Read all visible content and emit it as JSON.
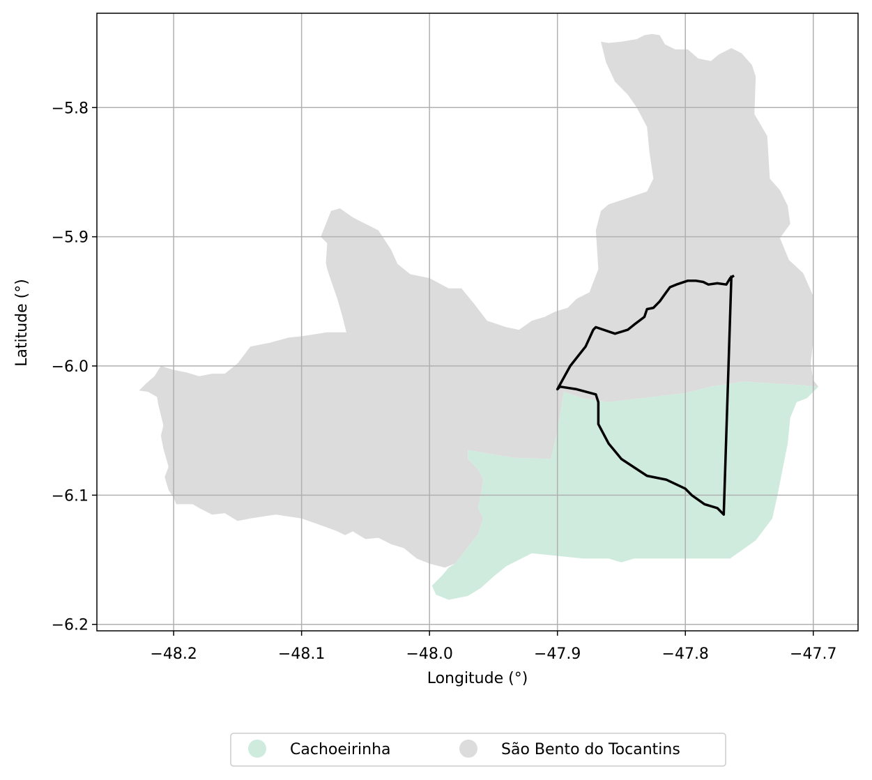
{
  "chart_data": {
    "type": "map",
    "title": "",
    "xlabel": "Longitude (°)",
    "ylabel": "Latitude (°)",
    "xlim": [
      -48.26,
      -47.665
    ],
    "ylim": [
      -6.205,
      -5.727
    ],
    "grid": true,
    "x_ticks": [
      {
        "value": -48.2,
        "label": "−48.2"
      },
      {
        "value": -48.1,
        "label": "−48.1"
      },
      {
        "value": -48.0,
        "label": "−48.0"
      },
      {
        "value": -47.9,
        "label": "−47.9"
      },
      {
        "value": -47.8,
        "label": "−47.8"
      },
      {
        "value": -47.7,
        "label": "−47.7"
      }
    ],
    "y_ticks": [
      {
        "value": -5.8,
        "label": "−5.8"
      },
      {
        "value": -5.9,
        "label": "−5.9"
      },
      {
        "value": -6.0,
        "label": "−6.0"
      },
      {
        "value": -6.1,
        "label": "−6.1"
      },
      {
        "value": -6.2,
        "label": "−6.2"
      }
    ],
    "legend": {
      "placement": "bottom-center",
      "entries": [
        {
          "name": "Cachoeirinha",
          "color": "#cfebde"
        },
        {
          "name": "São Bento do Tocantins",
          "color": "#dcdcdc"
        }
      ]
    },
    "regions": [
      {
        "name": "São Bento do Tocantins",
        "color": "#dcdcdc",
        "polygon": [
          [
            -47.866,
            -5.749
          ],
          [
            -47.86,
            -5.75
          ],
          [
            -47.85,
            -5.749
          ],
          [
            -47.838,
            -5.747
          ],
          [
            -47.832,
            -5.744
          ],
          [
            -47.826,
            -5.743
          ],
          [
            -47.82,
            -5.744
          ],
          [
            -47.816,
            -5.751
          ],
          [
            -47.808,
            -5.755
          ],
          [
            -47.798,
            -5.755
          ],
          [
            -47.79,
            -5.762
          ],
          [
            -47.78,
            -5.764
          ],
          [
            -47.774,
            -5.759
          ],
          [
            -47.764,
            -5.754
          ],
          [
            -47.756,
            -5.758
          ],
          [
            -47.748,
            -5.767
          ],
          [
            -47.745,
            -5.776
          ],
          [
            -47.746,
            -5.805
          ],
          [
            -47.736,
            -5.822
          ],
          [
            -47.734,
            -5.855
          ],
          [
            -47.726,
            -5.864
          ],
          [
            -47.72,
            -5.876
          ],
          [
            -47.718,
            -5.89
          ],
          [
            -47.726,
            -5.901
          ],
          [
            -47.719,
            -5.918
          ],
          [
            -47.708,
            -5.928
          ],
          [
            -47.7,
            -5.946
          ],
          [
            -47.7,
            -5.98
          ],
          [
            -47.702,
            -5.998
          ],
          [
            -47.7,
            -6.011
          ],
          [
            -47.696,
            -6.016
          ],
          [
            -47.707,
            -6.015
          ],
          [
            -47.74,
            -6.013
          ],
          [
            -47.755,
            -6.012
          ],
          [
            -47.78,
            -6.016
          ],
          [
            -47.8,
            -6.021
          ],
          [
            -47.86,
            -6.028
          ],
          [
            -47.88,
            -6.025
          ],
          [
            -47.895,
            -6.02
          ],
          [
            -47.9,
            -6.05
          ],
          [
            -47.905,
            -6.072
          ],
          [
            -47.935,
            -6.071
          ],
          [
            -47.97,
            -6.065
          ],
          [
            -47.97,
            -6.072
          ],
          [
            -47.962,
            -6.08
          ],
          [
            -47.958,
            -6.088
          ],
          [
            -47.96,
            -6.1
          ],
          [
            -47.962,
            -6.11
          ],
          [
            -47.958,
            -6.118
          ],
          [
            -47.962,
            -6.13
          ],
          [
            -47.98,
            -6.153
          ],
          [
            -47.988,
            -6.156
          ],
          [
            -48.0,
            -6.153
          ],
          [
            -48.01,
            -6.149
          ],
          [
            -48.02,
            -6.141
          ],
          [
            -48.03,
            -6.138
          ],
          [
            -48.04,
            -6.133
          ],
          [
            -48.05,
            -6.134
          ],
          [
            -48.06,
            -6.128
          ],
          [
            -48.066,
            -6.131
          ],
          [
            -48.072,
            -6.128
          ],
          [
            -48.08,
            -6.125
          ],
          [
            -48.1,
            -6.118
          ],
          [
            -48.12,
            -6.115
          ],
          [
            -48.14,
            -6.118
          ],
          [
            -48.15,
            -6.12
          ],
          [
            -48.16,
            -6.114
          ],
          [
            -48.17,
            -6.115
          ],
          [
            -48.18,
            -6.11
          ],
          [
            -48.185,
            -6.107
          ],
          [
            -48.198,
            -6.107
          ],
          [
            -48.2,
            -6.102
          ],
          [
            -48.204,
            -6.096
          ],
          [
            -48.207,
            -6.086
          ],
          [
            -48.204,
            -6.078
          ],
          [
            -48.208,
            -6.064
          ],
          [
            -48.21,
            -6.054
          ],
          [
            -48.208,
            -6.046
          ],
          [
            -48.212,
            -6.03
          ],
          [
            -48.213,
            -6.024
          ],
          [
            -48.22,
            -6.02
          ],
          [
            -48.227,
            -6.019
          ],
          [
            -48.222,
            -6.014
          ],
          [
            -48.215,
            -6.008
          ],
          [
            -48.21,
            -6.0
          ],
          [
            -48.2,
            -6.003
          ],
          [
            -48.19,
            -6.005
          ],
          [
            -48.18,
            -6.008
          ],
          [
            -48.17,
            -6.006
          ],
          [
            -48.16,
            -6.006
          ],
          [
            -48.15,
            -5.998
          ],
          [
            -48.14,
            -5.985
          ],
          [
            -48.125,
            -5.982
          ],
          [
            -48.11,
            -5.978
          ],
          [
            -48.1,
            -5.977
          ],
          [
            -48.08,
            -5.974
          ],
          [
            -48.065,
            -5.974
          ],
          [
            -48.068,
            -5.962
          ],
          [
            -48.072,
            -5.948
          ],
          [
            -48.077,
            -5.934
          ],
          [
            -48.08,
            -5.925
          ],
          [
            -48.081,
            -5.92
          ],
          [
            -48.08,
            -5.905
          ],
          [
            -48.085,
            -5.9
          ],
          [
            -48.077,
            -5.88
          ],
          [
            -48.07,
            -5.878
          ],
          [
            -48.06,
            -5.885
          ],
          [
            -48.05,
            -5.89
          ],
          [
            -48.04,
            -5.895
          ],
          [
            -48.03,
            -5.91
          ],
          [
            -48.025,
            -5.921
          ],
          [
            -48.015,
            -5.929
          ],
          [
            -48.0,
            -5.932
          ],
          [
            -47.985,
            -5.94
          ],
          [
            -47.975,
            -5.94
          ],
          [
            -47.965,
            -5.952
          ],
          [
            -47.955,
            -5.965
          ],
          [
            -47.94,
            -5.97
          ],
          [
            -47.93,
            -5.972
          ],
          [
            -47.92,
            -5.965
          ],
          [
            -47.91,
            -5.962
          ],
          [
            -47.902,
            -5.958
          ],
          [
            -47.892,
            -5.955
          ],
          [
            -47.885,
            -5.948
          ],
          [
            -47.875,
            -5.943
          ],
          [
            -47.868,
            -5.925
          ],
          [
            -47.87,
            -5.895
          ],
          [
            -47.866,
            -5.88
          ],
          [
            -47.86,
            -5.875
          ],
          [
            -47.845,
            -5.87
          ],
          [
            -47.83,
            -5.865
          ],
          [
            -47.825,
            -5.855
          ],
          [
            -47.828,
            -5.835
          ],
          [
            -47.83,
            -5.815
          ],
          [
            -47.838,
            -5.8
          ],
          [
            -47.845,
            -5.79
          ],
          [
            -47.855,
            -5.78
          ],
          [
            -47.862,
            -5.765
          ]
        ]
      },
      {
        "name": "Cachoeirinha",
        "color": "#cfebde",
        "polygon": [
          [
            -47.895,
            -6.02
          ],
          [
            -47.88,
            -6.025
          ],
          [
            -47.86,
            -6.028
          ],
          [
            -47.8,
            -6.021
          ],
          [
            -47.78,
            -6.016
          ],
          [
            -47.755,
            -6.012
          ],
          [
            -47.74,
            -6.013
          ],
          [
            -47.707,
            -6.015
          ],
          [
            -47.696,
            -6.016
          ],
          [
            -47.705,
            -6.025
          ],
          [
            -47.713,
            -6.028
          ],
          [
            -47.718,
            -6.04
          ],
          [
            -47.72,
            -6.06
          ],
          [
            -47.724,
            -6.08
          ],
          [
            -47.728,
            -6.1
          ],
          [
            -47.732,
            -6.118
          ],
          [
            -47.745,
            -6.135
          ],
          [
            -47.765,
            -6.149
          ],
          [
            -47.8,
            -6.149
          ],
          [
            -47.84,
            -6.149
          ],
          [
            -47.85,
            -6.152
          ],
          [
            -47.86,
            -6.149
          ],
          [
            -47.88,
            -6.149
          ],
          [
            -47.9,
            -6.147
          ],
          [
            -47.92,
            -6.145
          ],
          [
            -47.94,
            -6.155
          ],
          [
            -47.95,
            -6.163
          ],
          [
            -47.96,
            -6.172
          ],
          [
            -47.97,
            -6.178
          ],
          [
            -47.985,
            -6.181
          ],
          [
            -47.995,
            -6.177
          ],
          [
            -47.998,
            -6.17
          ],
          [
            -47.99,
            -6.162
          ],
          [
            -47.985,
            -6.156
          ],
          [
            -47.98,
            -6.153
          ],
          [
            -47.962,
            -6.13
          ],
          [
            -47.958,
            -6.118
          ],
          [
            -47.962,
            -6.11
          ],
          [
            -47.96,
            -6.1
          ],
          [
            -47.958,
            -6.088
          ],
          [
            -47.962,
            -6.08
          ],
          [
            -47.97,
            -6.072
          ],
          [
            -47.97,
            -6.065
          ],
          [
            -47.935,
            -6.071
          ],
          [
            -47.905,
            -6.072
          ],
          [
            -47.9,
            -6.05
          ]
        ]
      }
    ],
    "outline": {
      "color": "#000000",
      "path": [
        [
          -47.762,
          -5.93
        ],
        [
          -47.765,
          -5.932
        ],
        [
          -47.768,
          -5.937
        ],
        [
          -47.775,
          -5.936
        ],
        [
          -47.782,
          -5.937
        ],
        [
          -47.786,
          -5.935
        ],
        [
          -47.792,
          -5.934
        ],
        [
          -47.798,
          -5.934
        ],
        [
          -47.807,
          -5.937
        ],
        [
          -47.812,
          -5.939
        ],
        [
          -47.815,
          -5.943
        ],
        [
          -47.82,
          -5.95
        ],
        [
          -47.825,
          -5.955
        ],
        [
          -47.83,
          -5.956
        ],
        [
          -47.832,
          -5.962
        ],
        [
          -47.84,
          -5.968
        ],
        [
          -47.845,
          -5.972
        ],
        [
          -47.855,
          -5.975
        ],
        [
          -47.87,
          -5.97
        ],
        [
          -47.872,
          -5.972
        ],
        [
          -47.878,
          -5.985
        ],
        [
          -47.882,
          -5.99
        ],
        [
          -47.89,
          -6.0
        ],
        [
          -47.9,
          -6.018
        ],
        [
          -47.898,
          -6.016
        ],
        [
          -47.885,
          -6.018
        ],
        [
          -47.87,
          -6.022
        ],
        [
          -47.868,
          -6.028
        ],
        [
          -47.868,
          -6.045
        ],
        [
          -47.86,
          -6.06
        ],
        [
          -47.85,
          -6.072
        ],
        [
          -47.83,
          -6.085
        ],
        [
          -47.815,
          -6.088
        ],
        [
          -47.8,
          -6.095
        ],
        [
          -47.795,
          -6.1
        ],
        [
          -47.785,
          -6.107
        ],
        [
          -47.775,
          -6.11
        ],
        [
          -47.77,
          -6.115
        ],
        [
          -47.764,
          -5.93
        ]
      ]
    }
  }
}
